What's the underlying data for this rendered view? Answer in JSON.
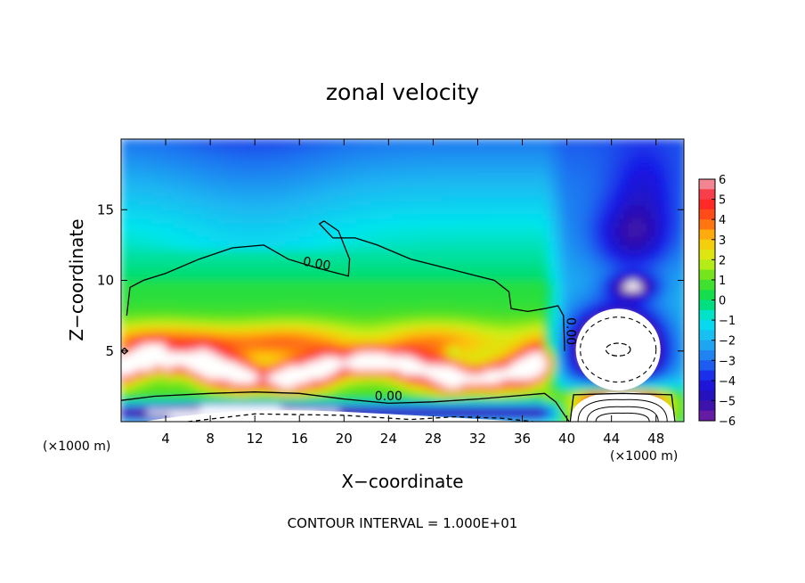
{
  "chart_data": {
    "type": "heatmap",
    "title": "zonal velocity",
    "xlabel": "X−coordinate",
    "ylabel": "Z−coordinate",
    "x_unit_left": "(×1000 m)",
    "x_unit_right": "(×1000 m)",
    "footer": "CONTOUR INTERVAL = 1.000E+01",
    "xlim": [
      0,
      50.5
    ],
    "ylim": [
      0,
      20
    ],
    "x_ticks": [
      4,
      8,
      12,
      16,
      20,
      24,
      28,
      32,
      36,
      40,
      44,
      48
    ],
    "y_ticks": [
      5,
      10,
      15
    ],
    "colorbar": {
      "range": [
        -6,
        6
      ],
      "ticks": [
        "6",
        "5",
        "4",
        "3",
        "2",
        "1",
        "0",
        "−1",
        "−2",
        "−3",
        "−4",
        "−5",
        "−6"
      ]
    },
    "contour_labels": [
      {
        "text": "0.00",
        "x": 17.5,
        "y": 10.9,
        "rotate": 10
      },
      {
        "text": "0.00",
        "x": 40,
        "y": 6.4,
        "rotate": 90
      },
      {
        "text": "0.00",
        "x": 24,
        "y": 1.5,
        "rotate": 0
      }
    ],
    "zero_contour": [
      [
        0,
        5
      ],
      [
        0.3,
        5.2
      ],
      [
        0.6,
        5
      ],
      [
        0.3,
        4.8
      ],
      [
        0,
        5
      ]
    ],
    "upper_zero_contour": [
      [
        0.5,
        7.5
      ],
      [
        0.8,
        9.5
      ],
      [
        2,
        10
      ],
      [
        4,
        10.5
      ],
      [
        7,
        11.5
      ],
      [
        10,
        12.3
      ],
      [
        12.8,
        12.5
      ],
      [
        15,
        11.5
      ],
      [
        17.5,
        10.9
      ],
      [
        20.4,
        10.3
      ],
      [
        20.5,
        11.5
      ],
      [
        19.5,
        13.5
      ],
      [
        18.2,
        14.2
      ],
      [
        17.8,
        14
      ],
      [
        19,
        13
      ],
      [
        21,
        13
      ],
      [
        23,
        12.5
      ],
      [
        26,
        11.5
      ],
      [
        28.5,
        11
      ],
      [
        31,
        10.5
      ],
      [
        33.5,
        10
      ],
      [
        34.8,
        9.2
      ],
      [
        35,
        8
      ],
      [
        36.5,
        7.8
      ],
      [
        38,
        8
      ],
      [
        39.2,
        8.2
      ],
      [
        39.7,
        7.5
      ],
      [
        39.8,
        5
      ]
    ],
    "lower_zero_contour": [
      [
        0,
        1.5
      ],
      [
        3,
        1.8
      ],
      [
        8,
        2
      ],
      [
        12,
        2.1
      ],
      [
        16,
        2
      ],
      [
        20,
        1.6
      ],
      [
        24,
        1.3
      ],
      [
        28,
        1.4
      ],
      [
        32,
        1.6
      ],
      [
        35,
        1.8
      ],
      [
        38,
        2
      ],
      [
        39,
        1.4
      ],
      [
        39.5,
        0.8
      ],
      [
        40.2,
        0
      ]
    ],
    "cell_contours": {
      "center": [
        44.6,
        5.1
      ],
      "neg_rings": [
        [
          3.4,
          2.3
        ]
      ],
      "pos_rings": [
        [
          4.0,
          1.8
        ],
        [
          3.0,
          1.3
        ]
      ]
    }
  }
}
